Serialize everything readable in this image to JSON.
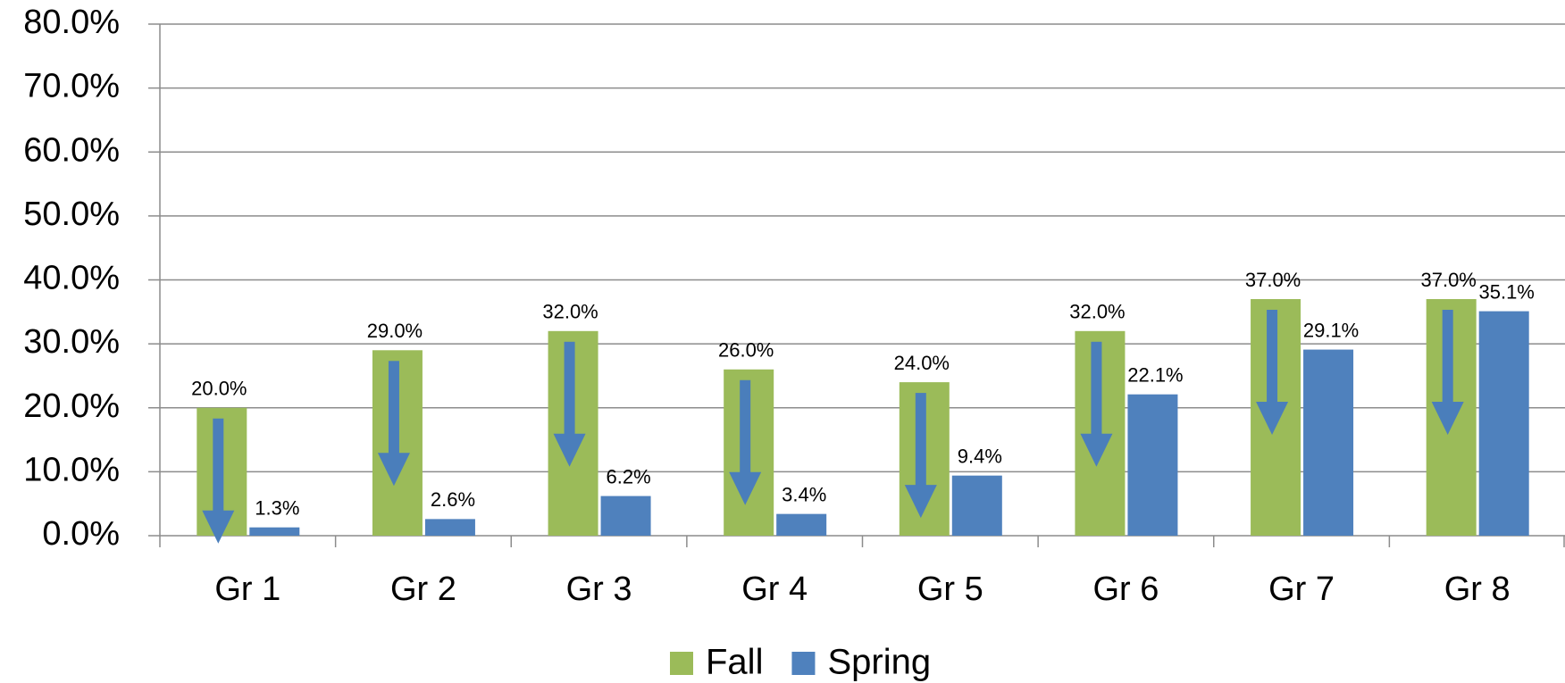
{
  "chart_data": {
    "type": "bar",
    "categories": [
      "Gr 1",
      "Gr 2",
      "Gr 3",
      "Gr 4",
      "Gr 5",
      "Gr 6",
      "Gr 7",
      "Gr 8"
    ],
    "series": [
      {
        "name": "Fall",
        "color": "#9bbb59",
        "values": [
          20,
          29,
          32,
          26,
          24,
          32,
          37,
          37
        ],
        "value_labels": [
          "20.0%",
          "29.0%",
          "32.0%",
          "26.0%",
          "24.0%",
          "32.0%",
          "37.0%",
          "37.0%"
        ]
      },
      {
        "name": "Spring",
        "color": "#4f81bd",
        "values": [
          1.3,
          2.6,
          6.2,
          3.4,
          9.4,
          22.1,
          29.1,
          35.1
        ],
        "value_labels": [
          "1.3%",
          "2.6%",
          "6.2%",
          "3.4%",
          "9.4%",
          "22.1%",
          "29.1%",
          "35.1%"
        ]
      }
    ],
    "ylim": [
      0,
      80
    ],
    "yticks": [
      {
        "value": 0,
        "label": "0.0%"
      },
      {
        "value": 10,
        "label": "10.0%"
      },
      {
        "value": 20,
        "label": "20.0%"
      },
      {
        "value": 30,
        "label": "30.0%"
      },
      {
        "value": 40,
        "label": "40.0%"
      },
      {
        "value": 50,
        "label": "50.0%"
      },
      {
        "value": 60,
        "label": "60.0%"
      },
      {
        "value": 70,
        "label": "70.0%"
      },
      {
        "value": 80,
        "label": "80.0%"
      }
    ],
    "grid": true,
    "legend": "bottom"
  }
}
